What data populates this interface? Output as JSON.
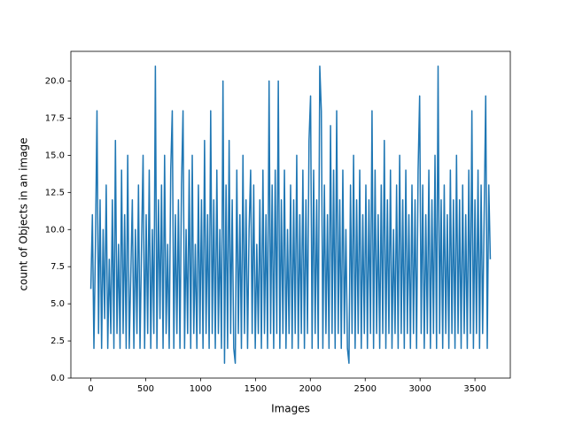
{
  "chart_data": {
    "type": "line",
    "xlabel": "Images",
    "ylabel": "count of Objects in an image",
    "color": "#1f77b4",
    "xlim": [
      -182,
      3822
    ],
    "ylim": [
      0,
      22
    ],
    "xticks": [
      0,
      500,
      1000,
      1500,
      2000,
      2500,
      3000,
      3500
    ],
    "yticks": [
      {
        "value": 0,
        "label": "0.0"
      },
      {
        "value": 2.5,
        "label": "2.5"
      },
      {
        "value": 5,
        "label": "5.0"
      },
      {
        "value": 7.5,
        "label": "7.5"
      },
      {
        "value": 10,
        "label": "10.0"
      },
      {
        "value": 12.5,
        "label": "12.5"
      },
      {
        "value": 15,
        "label": "15.0"
      },
      {
        "value": 17.5,
        "label": "17.5"
      },
      {
        "value": 20,
        "label": "20.0"
      }
    ],
    "x": [
      0,
      14,
      28,
      42,
      56,
      70,
      84,
      98,
      112,
      126,
      140,
      154,
      168,
      182,
      196,
      210,
      224,
      238,
      252,
      266,
      280,
      294,
      308,
      322,
      336,
      350,
      364,
      378,
      392,
      406,
      420,
      434,
      448,
      462,
      476,
      490,
      504,
      518,
      532,
      546,
      560,
      574,
      588,
      602,
      616,
      630,
      644,
      658,
      672,
      686,
      700,
      714,
      728,
      742,
      756,
      770,
      784,
      798,
      812,
      826,
      840,
      854,
      868,
      882,
      896,
      910,
      924,
      938,
      952,
      966,
      980,
      994,
      1008,
      1022,
      1036,
      1050,
      1064,
      1078,
      1092,
      1106,
      1120,
      1134,
      1148,
      1162,
      1176,
      1190,
      1204,
      1218,
      1232,
      1246,
      1260,
      1274,
      1288,
      1302,
      1316,
      1330,
      1344,
      1358,
      1372,
      1386,
      1400,
      1414,
      1428,
      1442,
      1456,
      1470,
      1484,
      1498,
      1512,
      1526,
      1540,
      1554,
      1568,
      1582,
      1596,
      1610,
      1624,
      1638,
      1652,
      1666,
      1680,
      1694,
      1708,
      1722,
      1736,
      1750,
      1764,
      1778,
      1792,
      1806,
      1820,
      1834,
      1848,
      1862,
      1876,
      1890,
      1904,
      1918,
      1932,
      1946,
      1960,
      1974,
      1988,
      2002,
      2016,
      2030,
      2044,
      2058,
      2072,
      2086,
      2100,
      2114,
      2128,
      2142,
      2156,
      2170,
      2184,
      2198,
      2212,
      2226,
      2240,
      2254,
      2268,
      2282,
      2296,
      2310,
      2324,
      2338,
      2352,
      2366,
      2380,
      2394,
      2408,
      2422,
      2436,
      2450,
      2464,
      2478,
      2492,
      2506,
      2520,
      2534,
      2548,
      2562,
      2576,
      2590,
      2604,
      2618,
      2632,
      2646,
      2660,
      2674,
      2688,
      2702,
      2716,
      2730,
      2744,
      2758,
      2772,
      2786,
      2800,
      2814,
      2828,
      2842,
      2856,
      2870,
      2884,
      2898,
      2912,
      2926,
      2940,
      2954,
      2968,
      2982,
      2996,
      3010,
      3024,
      3038,
      3052,
      3066,
      3080,
      3094,
      3108,
      3122,
      3136,
      3150,
      3164,
      3178,
      3192,
      3206,
      3220,
      3234,
      3248,
      3262,
      3276,
      3290,
      3304,
      3318,
      3332,
      3346,
      3360,
      3374,
      3388,
      3402,
      3416,
      3430,
      3444,
      3458,
      3472,
      3486,
      3500,
      3514,
      3528,
      3542,
      3556,
      3570,
      3584,
      3598,
      3612,
      3626,
      3640
    ],
    "values": [
      6,
      11,
      2,
      9,
      18,
      3,
      12,
      2,
      10,
      4,
      13,
      2,
      8,
      3,
      12,
      2,
      16,
      3,
      9,
      2,
      14,
      3,
      11,
      2,
      15,
      2,
      7,
      12,
      2,
      10,
      3,
      13,
      2,
      9,
      15,
      2,
      11,
      3,
      14,
      2,
      10,
      3,
      21,
      2,
      12,
      4,
      13,
      2,
      15,
      3,
      9,
      2,
      14,
      18,
      2,
      11,
      3,
      12,
      2,
      13,
      18,
      2,
      10,
      3,
      14,
      2,
      15,
      3,
      9,
      2,
      13,
      3,
      12,
      2,
      16,
      3,
      11,
      2,
      18,
      3,
      12,
      2,
      14,
      3,
      10,
      2,
      20,
      1,
      13,
      2,
      16,
      3,
      12,
      2,
      1,
      14,
      3,
      11,
      2,
      15,
      3,
      12,
      2,
      10,
      14,
      3,
      13,
      2,
      9,
      3,
      12,
      2,
      14,
      3,
      11,
      2,
      20,
      3,
      13,
      2,
      14,
      3,
      20,
      2,
      12,
      3,
      14,
      2,
      10,
      3,
      13,
      2,
      12,
      3,
      15,
      2,
      11,
      3,
      14,
      2,
      12,
      3,
      16,
      19,
      2,
      14,
      3,
      12,
      2,
      21,
      18,
      2,
      13,
      3,
      11,
      2,
      17,
      3,
      14,
      2,
      18,
      3,
      12,
      2,
      14,
      3,
      10,
      2,
      1,
      13,
      3,
      15,
      2,
      12,
      3,
      14,
      2,
      11,
      3,
      13,
      2,
      12,
      3,
      18,
      2,
      14,
      3,
      11,
      2,
      13,
      3,
      16,
      2,
      12,
      3,
      14,
      2,
      10,
      3,
      13,
      2,
      15,
      3,
      12,
      2,
      14,
      3,
      11,
      2,
      13,
      3,
      12,
      2,
      14,
      19,
      3,
      13,
      2,
      11,
      3,
      14,
      2,
      12,
      3,
      15,
      2,
      21,
      3,
      12,
      2,
      13,
      3,
      11,
      2,
      14,
      3,
      12,
      2,
      15,
      3,
      12,
      2,
      13,
      3,
      11,
      2,
      14,
      3,
      18,
      2,
      12,
      3,
      14,
      2,
      13,
      3,
      11,
      19,
      2,
      13,
      8
    ]
  }
}
